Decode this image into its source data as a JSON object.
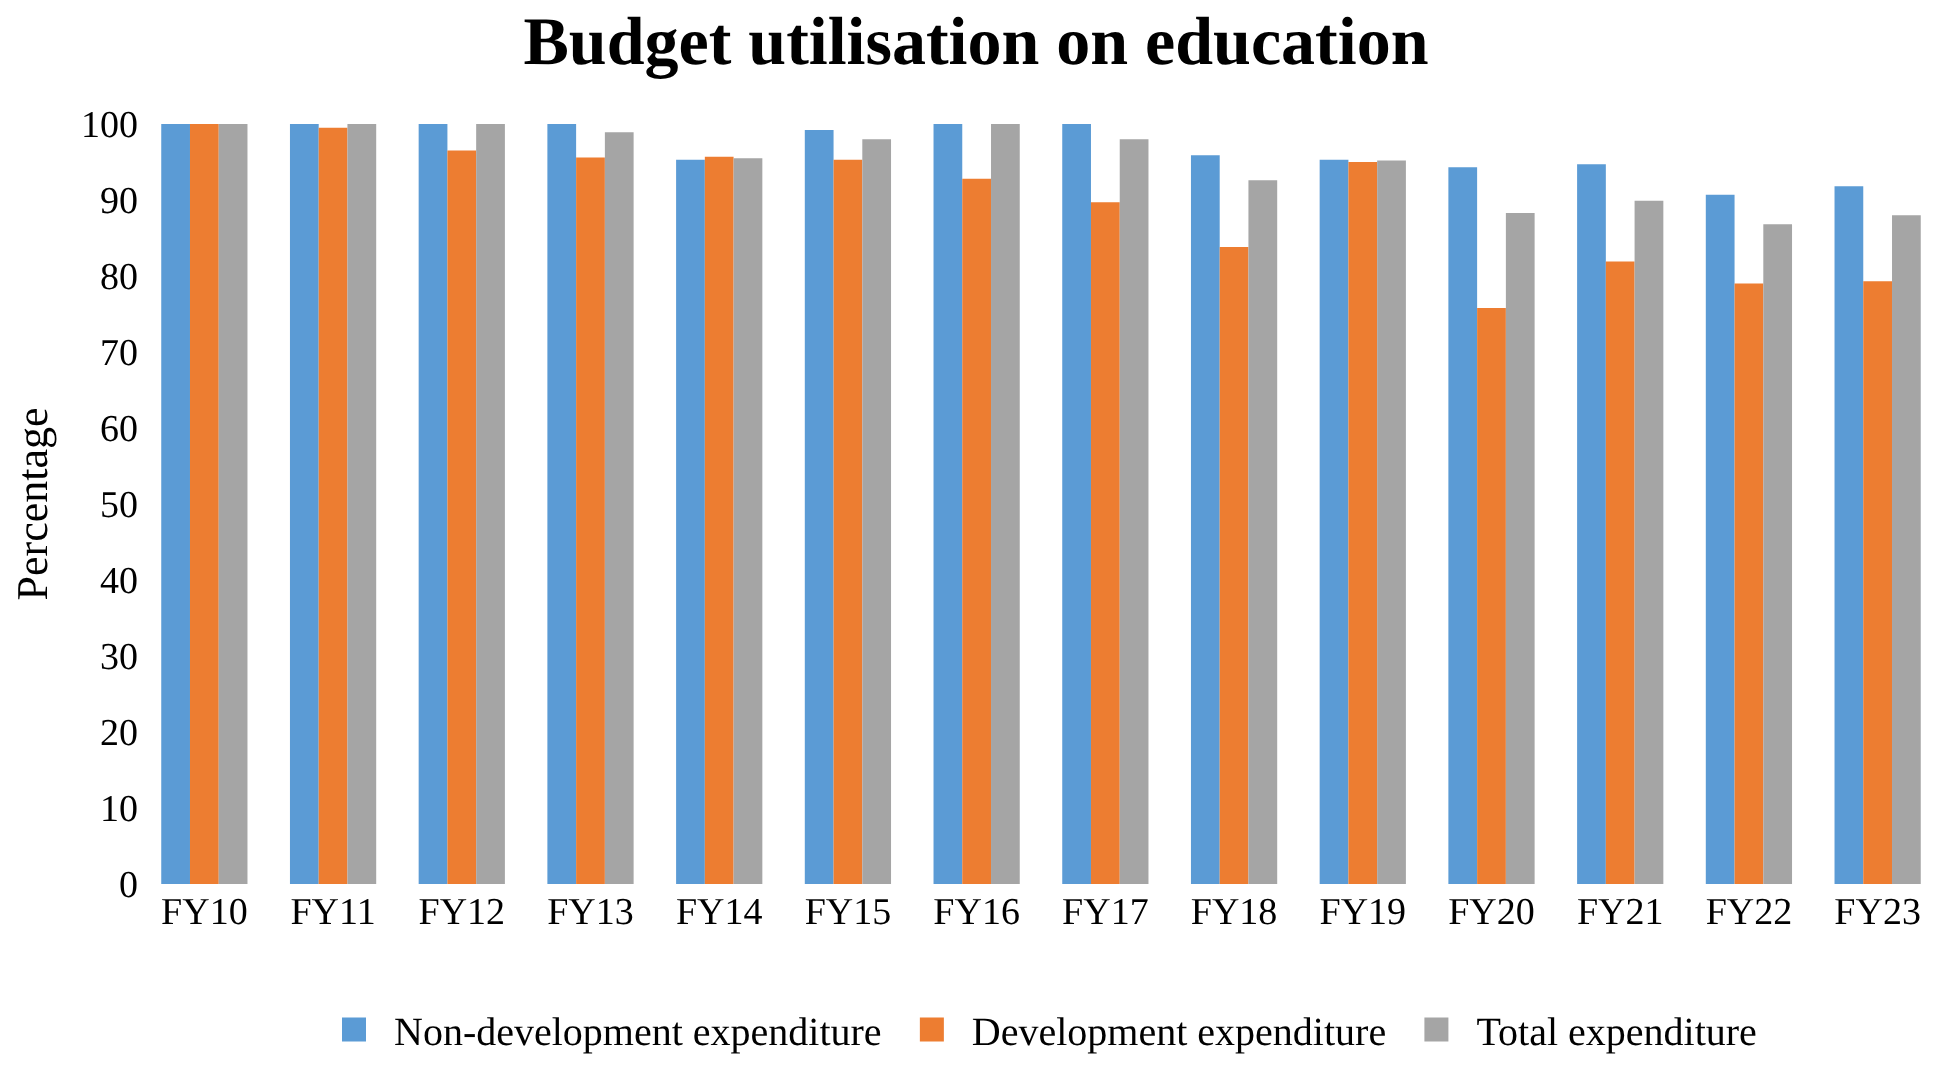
{
  "chart_data": {
    "type": "bar",
    "title": "Budget utilisation on education",
    "ylabel": "Percentage",
    "categories": [
      "FY10",
      "FY11",
      "FY12",
      "FY13",
      "FY14",
      "FY15",
      "FY16",
      "FY17",
      "FY18",
      "FY19",
      "FY20",
      "FY21",
      "FY22",
      "FY23"
    ],
    "series": [
      {
        "name": "Non-development expenditure",
        "color": "#5b9bd5",
        "values": [
          100,
          100,
          100,
          100,
          95.3,
          99.2,
          100,
          100,
          95.9,
          95.3,
          94.3,
          94.7,
          90.7,
          91.8
        ]
      },
      {
        "name": "Development expenditure",
        "color": "#ed7d31",
        "values": [
          100,
          99.5,
          96.5,
          95.6,
          95.7,
          95.3,
          92.8,
          89.7,
          83.8,
          95,
          75.8,
          81.9,
          79,
          79.3
        ]
      },
      {
        "name": "Total expenditure",
        "color": "#a5a5a5",
        "values": [
          100,
          100,
          100,
          98.9,
          95.5,
          98,
          100,
          98,
          92.6,
          95.2,
          88.3,
          89.9,
          86.8,
          88
        ]
      }
    ],
    "ylim": [
      0,
      100
    ],
    "yticks": [
      0,
      10,
      20,
      30,
      40,
      50,
      60,
      70,
      80,
      90,
      100
    ],
    "grid": false,
    "legend": "bottom"
  }
}
